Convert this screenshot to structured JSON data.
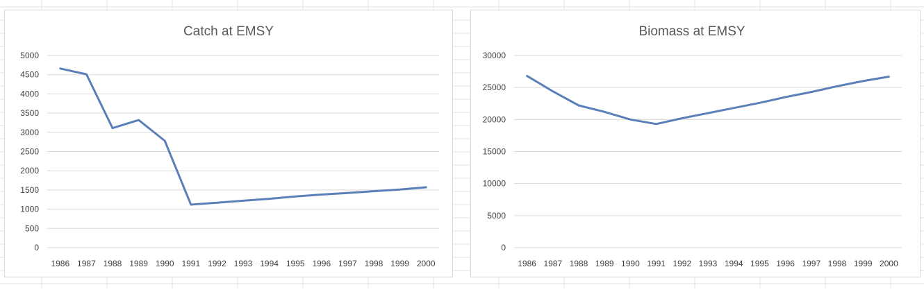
{
  "chart_data": [
    {
      "type": "line",
      "title": "Catch at EMSY",
      "categories": [
        "1986",
        "1987",
        "1988",
        "1989",
        "1990",
        "1991",
        "1992",
        "1993",
        "1994",
        "1995",
        "1996",
        "1997",
        "1998",
        "1999",
        "2000"
      ],
      "series": [
        {
          "values": [
            4660,
            4510,
            3110,
            3320,
            2780,
            1120,
            1170,
            1220,
            1270,
            1330,
            1380,
            1420,
            1470,
            1510,
            1570
          ]
        }
      ],
      "ylim": [
        0,
        5000
      ],
      "yticks": [
        "0",
        "500",
        "1000",
        "1500",
        "2000",
        "2500",
        "3000",
        "3500",
        "4000",
        "4500",
        "5000"
      ],
      "grid": true,
      "line_color": "#5b7fb8"
    },
    {
      "type": "line",
      "title": "Biomass at EMSY",
      "categories": [
        "1986",
        "1987",
        "1988",
        "1989",
        "1990",
        "1991",
        "1992",
        "1993",
        "1994",
        "1995",
        "1996",
        "1997",
        "1998",
        "1999",
        "2000"
      ],
      "series": [
        {
          "values": [
            26800,
            24400,
            22200,
            21200,
            20000,
            19300,
            20200,
            21000,
            21800,
            22600,
            23500,
            24300,
            25200,
            26000,
            26700
          ]
        }
      ],
      "ylim": [
        0,
        30000
      ],
      "yticks": [
        "0",
        "5000",
        "10000",
        "15000",
        "20000",
        "25000",
        "30000"
      ],
      "grid": true,
      "line_color": "#5b7fb8"
    }
  ]
}
